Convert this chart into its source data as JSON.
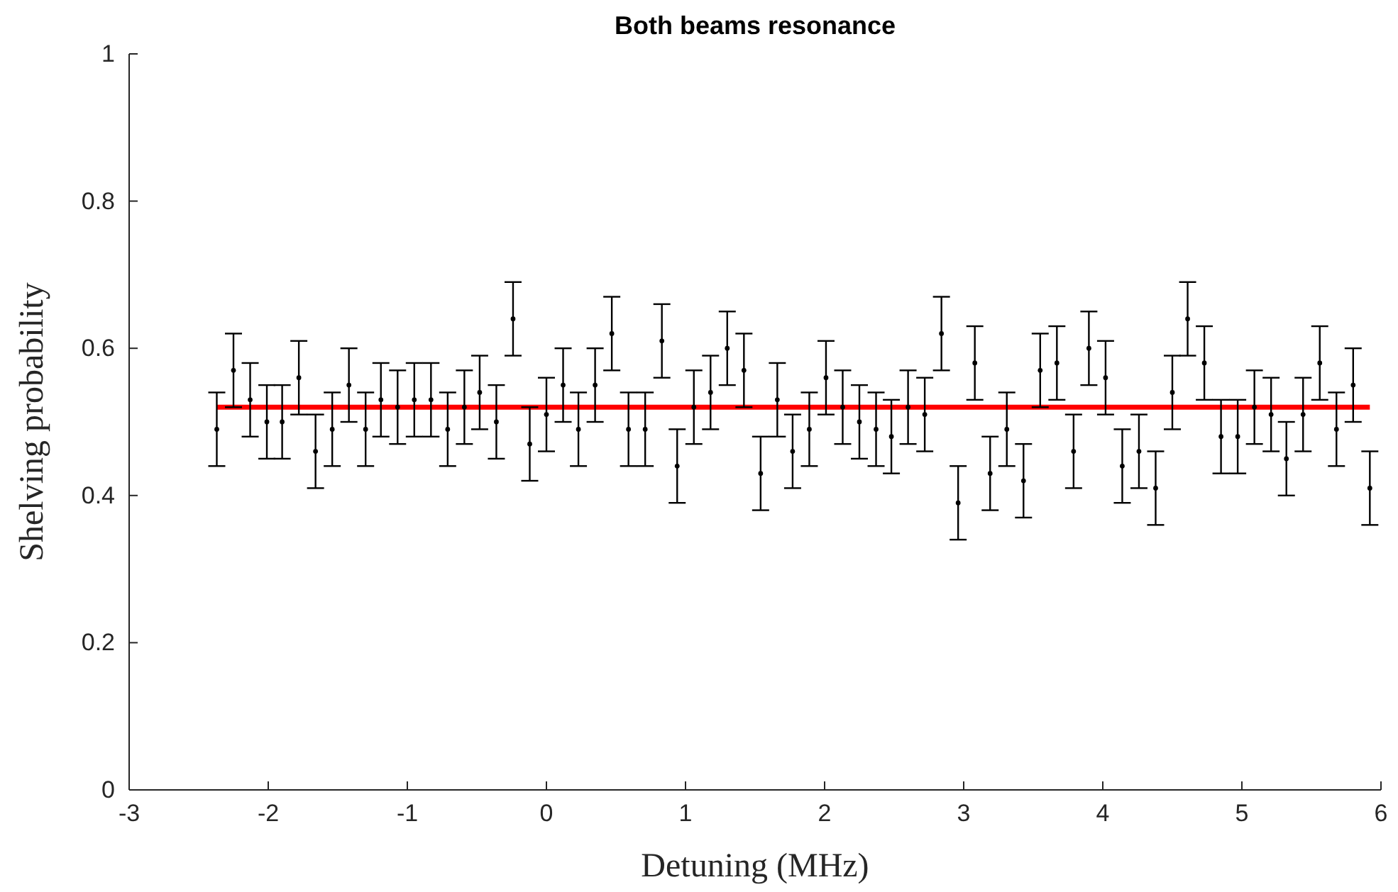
{
  "chart_data": {
    "type": "scatter",
    "title": "Both beams resonance",
    "xlabel": "Detuning (MHz)",
    "ylabel": "Shelving probability",
    "xlim": [
      -3,
      6
    ],
    "xticks": [
      -3,
      -2,
      -1,
      0,
      1,
      2,
      3,
      4,
      5,
      6
    ],
    "ylim": [
      0,
      1
    ],
    "yticks": [
      0,
      0.2,
      0.4,
      0.6,
      0.8,
      1
    ],
    "grid": false,
    "series": [
      {
        "color": "#000000",
        "marker": "circle",
        "x": [
          -2.37,
          -2.25,
          -2.13,
          -2.01,
          -1.9,
          -1.78,
          -1.66,
          -1.54,
          -1.42,
          -1.3,
          -1.19,
          -1.07,
          -0.95,
          -0.83,
          -0.71,
          -0.59,
          -0.48,
          -0.36,
          -0.24,
          -0.12,
          0.0,
          0.12,
          0.23,
          0.35,
          0.47,
          0.59,
          0.71,
          0.83,
          0.94,
          1.06,
          1.18,
          1.3,
          1.42,
          1.54,
          1.66,
          1.77,
          1.89,
          2.01,
          2.13,
          2.25,
          2.37,
          2.48,
          2.6,
          2.72,
          2.84,
          2.96,
          3.08,
          3.19,
          3.31,
          3.43,
          3.55,
          3.67,
          3.79,
          3.9,
          4.02,
          4.14,
          4.26,
          4.38,
          4.5,
          4.61,
          4.73,
          4.85,
          4.97,
          5.09,
          5.21,
          5.32,
          5.44,
          5.56,
          5.68,
          5.8,
          5.92
        ],
        "values": [
          0.49,
          0.57,
          0.53,
          0.5,
          0.5,
          0.56,
          0.46,
          0.49,
          0.55,
          0.49,
          0.53,
          0.52,
          0.53,
          0.53,
          0.49,
          0.52,
          0.54,
          0.5,
          0.64,
          0.47,
          0.51,
          0.55,
          0.49,
          0.55,
          0.62,
          0.49,
          0.49,
          0.61,
          0.44,
          0.52,
          0.54,
          0.6,
          0.57,
          0.43,
          0.53,
          0.46,
          0.49,
          0.56,
          0.52,
          0.5,
          0.49,
          0.48,
          0.52,
          0.51,
          0.62,
          0.39,
          0.58,
          0.43,
          0.49,
          0.42,
          0.57,
          0.58,
          0.46,
          0.6,
          0.56,
          0.44,
          0.46,
          0.41,
          0.54,
          0.64,
          0.58,
          0.48,
          0.48,
          0.52,
          0.51,
          0.45,
          0.51,
          0.58,
          0.49,
          0.55,
          0.41
        ],
        "errors": [
          0.05,
          0.05,
          0.05,
          0.05,
          0.05,
          0.05,
          0.05,
          0.05,
          0.05,
          0.05,
          0.05,
          0.05,
          0.05,
          0.05,
          0.05,
          0.05,
          0.05,
          0.05,
          0.05,
          0.05,
          0.05,
          0.05,
          0.05,
          0.05,
          0.05,
          0.05,
          0.05,
          0.05,
          0.05,
          0.05,
          0.05,
          0.05,
          0.05,
          0.05,
          0.05,
          0.05,
          0.05,
          0.05,
          0.05,
          0.05,
          0.05,
          0.05,
          0.05,
          0.05,
          0.05,
          0.05,
          0.05,
          0.05,
          0.05,
          0.05,
          0.05,
          0.05,
          0.05,
          0.05,
          0.05,
          0.05,
          0.05,
          0.05,
          0.05,
          0.05,
          0.05,
          0.05,
          0.05,
          0.05,
          0.05,
          0.05,
          0.05,
          0.05,
          0.05,
          0.05,
          0.05
        ]
      },
      {
        "type": "line",
        "color": "#ff0000",
        "line_style": "solid",
        "x": [
          -2.37,
          5.92
        ],
        "values": [
          0.52,
          0.52
        ]
      }
    ]
  }
}
